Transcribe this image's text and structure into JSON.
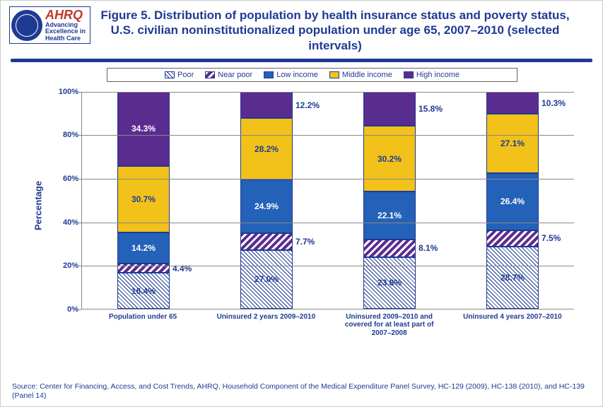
{
  "branding": {
    "logo_title": "AHRQ",
    "logo_sub1": "Advancing",
    "logo_sub2": "Excellence in",
    "logo_sub3": "Health Care"
  },
  "title": "Figure 5. Distribution of population by health insurance status and poverty status, U.S. civilian noninstitutionalized population under age 65, 2007–2010 (selected intervals)",
  "legend": {
    "items": [
      {
        "key": "poor",
        "label": "Poor"
      },
      {
        "key": "near",
        "label": "Near poor"
      },
      {
        "key": "low",
        "label": "Low income"
      },
      {
        "key": "mid",
        "label": "Middle income"
      },
      {
        "key": "high",
        "label": "High income"
      }
    ]
  },
  "chart": {
    "type": "stacked-bar-100",
    "ylabel": "Percentage",
    "ylim": [
      0,
      100
    ],
    "ytick_step": 20,
    "segment_order": [
      "poor",
      "near",
      "low",
      "mid",
      "high"
    ],
    "segment_styles": {
      "poor": {
        "pattern": "diag-hatch",
        "fg": "#1f3a93",
        "bg": "#ffffff"
      },
      "near": {
        "pattern": "diag-stripe",
        "fg": "#5b2c8f",
        "bg": "#ffffff"
      },
      "low": {
        "fill": "#2461b8"
      },
      "mid": {
        "fill": "#f2c21a"
      },
      "high": {
        "fill": "#5b2c8f"
      }
    },
    "label_placement": {
      "poor": "inside-dark",
      "near": "right",
      "low": "inside",
      "mid": "inside-dark",
      "high": "right"
    },
    "categories": [
      {
        "label": "Population under 65",
        "values": {
          "poor": 16.4,
          "near": 4.4,
          "low": 14.2,
          "mid": 30.7,
          "high": 34.3
        },
        "label_overrides": {
          "high": "inside"
        }
      },
      {
        "label": "Uninsured 2 years 2009–2010",
        "values": {
          "poor": 27.0,
          "near": 7.7,
          "low": 24.9,
          "mid": 28.2,
          "high": 12.2
        }
      },
      {
        "label": "Uninsured 2009–2010 and covered for at least part of 2007–2008",
        "values": {
          "poor": 23.8,
          "near": 8.1,
          "low": 22.1,
          "mid": 30.2,
          "high": 15.8
        }
      },
      {
        "label": "Uninsured 4 years 2007–2010",
        "values": {
          "poor": 28.7,
          "near": 7.5,
          "low": 26.4,
          "mid": 27.1,
          "high": 10.3
        }
      }
    ],
    "colors": {
      "axis": "#888888",
      "text": "#1f3a93",
      "background": "#ffffff"
    },
    "fontsize": {
      "title": 17,
      "axis_label": 13,
      "tick": 11,
      "data_label": 12,
      "legend": 11,
      "xcat": 10
    }
  },
  "source": "Source: Center for Financing, Access, and Cost Trends, AHRQ, Household Component of the Medical Expenditure Panel Survey, HC-129 (2009), HC-138 (2010), and HC-139 (Panel 14)"
}
